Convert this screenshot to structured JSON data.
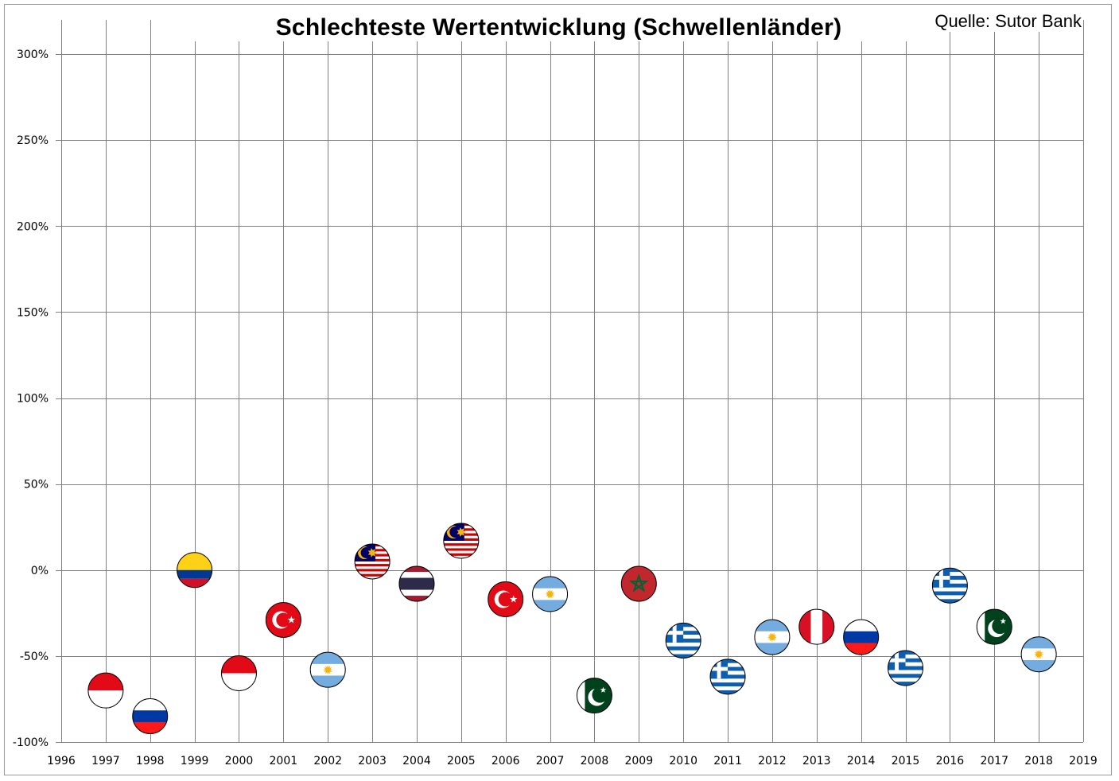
{
  "header": {
    "title": "Schlechteste Wertentwicklung (Schwellenländer)",
    "source": "Quelle: Sutor Bank"
  },
  "chart_data": {
    "type": "scatter",
    "title": "Schlechteste Wertentwicklung (Schwellenländer)",
    "annotation": "Quelle: Sutor Bank",
    "xlabel": "",
    "ylabel": "",
    "xlim": [
      1996,
      2019
    ],
    "ylim": [
      -100,
      300
    ],
    "x_ticks": [
      "1996",
      "1997",
      "1998",
      "1999",
      "2000",
      "2001",
      "2002",
      "2003",
      "2004",
      "2005",
      "2006",
      "2007",
      "2008",
      "2009",
      "2010",
      "2011",
      "2012",
      "2013",
      "2014",
      "2015",
      "2016",
      "2017",
      "2018",
      "2019"
    ],
    "y_ticks": [
      "-100%",
      "-50%",
      "0%",
      "50%",
      "100%",
      "150%",
      "200%",
      "250%",
      "300%"
    ],
    "grid": true,
    "legend": "none",
    "marker": "country-flag",
    "points": [
      {
        "x": 1997,
        "y": -70,
        "flag": "indonesia"
      },
      {
        "x": 1998,
        "y": -85,
        "flag": "russia"
      },
      {
        "x": 1999,
        "y": 0,
        "flag": "colombia"
      },
      {
        "x": 2000,
        "y": -60,
        "flag": "indonesia"
      },
      {
        "x": 2001,
        "y": -29,
        "flag": "turkey"
      },
      {
        "x": 2002,
        "y": -58,
        "flag": "argentina"
      },
      {
        "x": 2003,
        "y": 5,
        "flag": "malaysia"
      },
      {
        "x": 2004,
        "y": -8,
        "flag": "thailand"
      },
      {
        "x": 2005,
        "y": 17,
        "flag": "malaysia"
      },
      {
        "x": 2006,
        "y": -17,
        "flag": "turkey"
      },
      {
        "x": 2007,
        "y": -14,
        "flag": "argentina"
      },
      {
        "x": 2008,
        "y": -73,
        "flag": "pakistan"
      },
      {
        "x": 2009,
        "y": -8,
        "flag": "morocco"
      },
      {
        "x": 2010,
        "y": -41,
        "flag": "greece"
      },
      {
        "x": 2011,
        "y": -62,
        "flag": "greece"
      },
      {
        "x": 2012,
        "y": -39,
        "flag": "argentina"
      },
      {
        "x": 2013,
        "y": -33,
        "flag": "peru"
      },
      {
        "x": 2014,
        "y": -39,
        "flag": "russia"
      },
      {
        "x": 2015,
        "y": -57,
        "flag": "greece"
      },
      {
        "x": 2016,
        "y": -9,
        "flag": "greece"
      },
      {
        "x": 2017,
        "y": -33,
        "flag": "pakistan"
      },
      {
        "x": 2018,
        "y": -49,
        "flag": "argentina"
      }
    ],
    "colors": {
      "grid": "#808080",
      "red": "#e30a17",
      "white": "#ffffff",
      "blue_russia": "#0039a6",
      "red_russia": "#ff1a1a",
      "yellow": "#fcd116",
      "blue_colombia": "#003893",
      "red_colombia": "#ce1126",
      "sky": "#74acdf",
      "sun": "#f6b40e",
      "malaysia_blue": "#010066",
      "malaysia_red": "#cc0001",
      "thai_red": "#a51931",
      "thai_blue": "#2d2a4a",
      "pakistan_green": "#01411c",
      "morocco_red": "#c1272d",
      "morocco_green": "#006233",
      "greek_blue": "#0d5eaf",
      "peru_red": "#d91023"
    }
  }
}
